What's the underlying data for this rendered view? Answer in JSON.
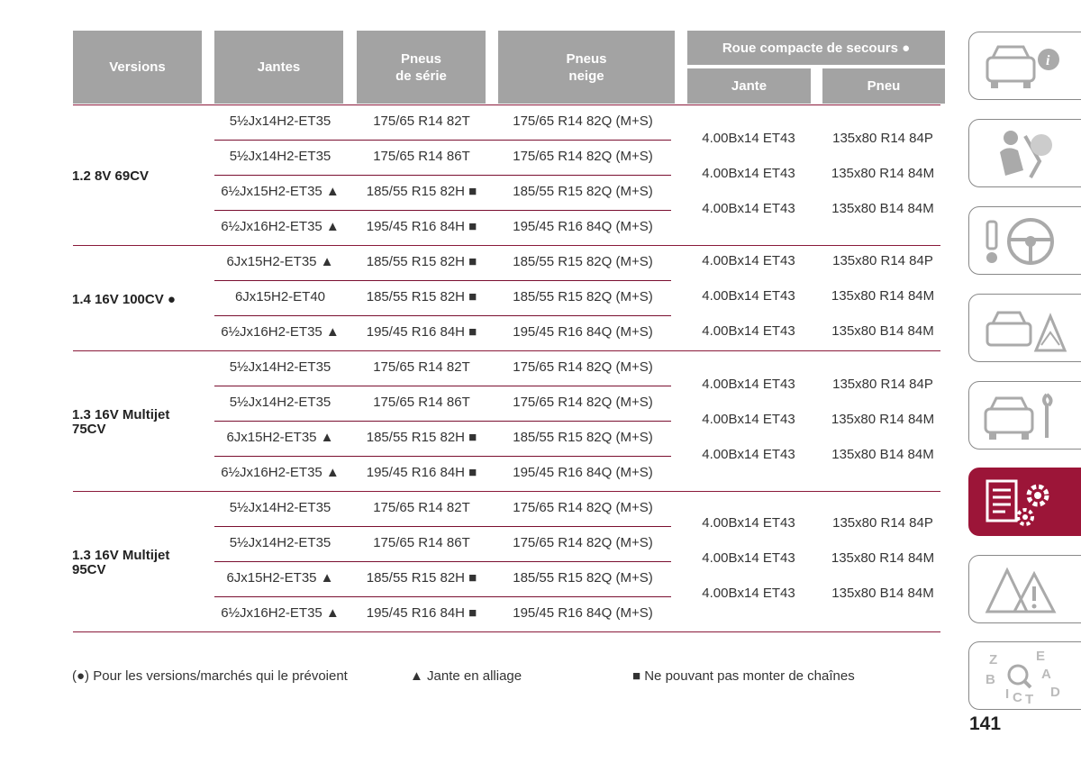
{
  "header": {
    "versions": "Versions",
    "jantes": "Jantes",
    "pneus_serie_1": "Pneus",
    "pneus_serie_2": "de série",
    "pneus_neige_1": "Pneus",
    "pneus_neige_2": "neige",
    "roue_compacte": "Roue compacte de secours ●",
    "jante": "Jante",
    "pneu": "Pneu"
  },
  "groups": [
    {
      "version": [
        "1.2 8V 69CV"
      ],
      "rows": [
        {
          "jante": "5½Jx14H2-ET35",
          "serie": "175/65 R14 82T",
          "neige": "175/65 R14 82Q (M+S)"
        },
        {
          "jante": "5½Jx14H2-ET35",
          "serie": "175/65 R14 86T",
          "neige": "175/65 R14 82Q (M+S)"
        },
        {
          "jante": "6½Jx15H2-ET35 ▲",
          "serie": "185/55 R15 82H ■",
          "neige": "185/55 R15 82Q (M+S)"
        },
        {
          "jante": "6½Jx16H2-ET35 ▲",
          "serie": "195/45 R16 84H ■",
          "neige": "195/45 R16 84Q (M+S)"
        }
      ],
      "spare": [
        {
          "jante": "4.00Bx14 ET43",
          "pneu": "135x80 R14 84P"
        },
        {
          "jante": "4.00Bx14 ET43",
          "pneu": "135x80 R14 84M"
        },
        {
          "jante": "4.00Bx14 ET43",
          "pneu": "135x80 B14 84M"
        }
      ]
    },
    {
      "version": [
        "1.4 16V 100CV ●"
      ],
      "rows": [
        {
          "jante": "6Jx15H2-ET35 ▲",
          "serie": "185/55 R15 82H ■",
          "neige": "185/55 R15 82Q (M+S)"
        },
        {
          "jante": "6Jx15H2-ET40",
          "serie": "185/55 R15 82H ■",
          "neige": "185/55 R15 82Q (M+S)"
        },
        {
          "jante": "6½Jx16H2-ET35 ▲",
          "serie": "195/45 R16 84H ■",
          "neige": "195/45 R16 84Q (M+S)"
        }
      ],
      "spare": [
        {
          "jante": "4.00Bx14 ET43",
          "pneu": "135x80 R14 84P"
        },
        {
          "jante": "4.00Bx14 ET43",
          "pneu": "135x80 R14 84M"
        },
        {
          "jante": "4.00Bx14 ET43",
          "pneu": "135x80 B14 84M"
        }
      ]
    },
    {
      "version": [
        "1.3 16V Multijet",
        "75CV"
      ],
      "rows": [
        {
          "jante": "5½Jx14H2-ET35",
          "serie": "175/65 R14 82T",
          "neige": "175/65 R14 82Q (M+S)"
        },
        {
          "jante": "5½Jx14H2-ET35",
          "serie": "175/65 R14 86T",
          "neige": "175/65 R14 82Q (M+S)"
        },
        {
          "jante": "6Jx15H2-ET35 ▲",
          "serie": "185/55 R15 82H ■",
          "neige": "185/55 R15 82Q (M+S)"
        },
        {
          "jante": "6½Jx16H2-ET35 ▲",
          "serie": "195/45 R16 84H ■",
          "neige": "195/45 R16 84Q (M+S)"
        }
      ],
      "spare": [
        {
          "jante": "4.00Bx14 ET43",
          "pneu": "135x80 R14 84P"
        },
        {
          "jante": "4.00Bx14 ET43",
          "pneu": "135x80 R14 84M"
        },
        {
          "jante": "4.00Bx14 ET43",
          "pneu": "135x80 B14 84M"
        }
      ]
    },
    {
      "version": [
        "1.3 16V Multijet",
        "95CV"
      ],
      "rows": [
        {
          "jante": "5½Jx14H2-ET35",
          "serie": "175/65 R14 82T",
          "neige": "175/65 R14 82Q (M+S)"
        },
        {
          "jante": "5½Jx14H2-ET35",
          "serie": "175/65 R14 86T",
          "neige": "175/65 R14 82Q (M+S)"
        },
        {
          "jante": "6Jx15H2-ET35 ▲",
          "serie": "185/55 R15 82H ■",
          "neige": "185/55 R15 82Q (M+S)"
        },
        {
          "jante": "6½Jx16H2-ET35 ▲",
          "serie": "195/45 R16 84H ■",
          "neige": "195/45 R16 84Q (M+S)"
        }
      ],
      "spare": [
        {
          "jante": "4.00Bx14 ET43",
          "pneu": "135x80 R14 84P"
        },
        {
          "jante": "4.00Bx14 ET43",
          "pneu": "135x80 R14 84M"
        },
        {
          "jante": "4.00Bx14 ET43",
          "pneu": "135x80 B14 84M"
        }
      ]
    }
  ],
  "legend": {
    "dot": "(●)  Pour les versions/marchés qui le prévoient",
    "triangle": "▲   Jante en alliage",
    "square": "■   Ne pouvant pas monter de chaînes"
  },
  "sidebar": {
    "tabs": [
      "dashboard-car-info-icon",
      "safety-airbag-icon",
      "starting-driving-icon",
      "emergency-icon",
      "maintenance-car-icon",
      "technical-data-icon",
      "warnings-icon",
      "index-alphabet-icon"
    ],
    "active_color": "#9c1538",
    "index_letters": [
      "Z",
      "E",
      "B",
      "A",
      "D",
      "I",
      "C",
      "T"
    ]
  },
  "page_number": "141"
}
